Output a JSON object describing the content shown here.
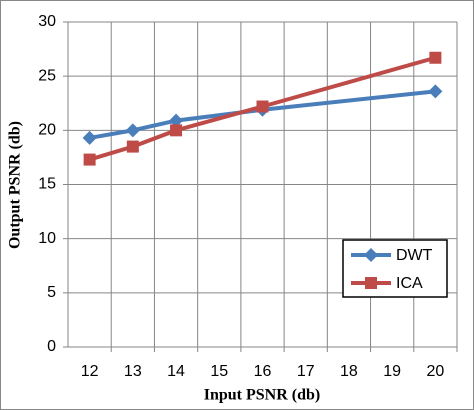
{
  "chart_data": {
    "type": "line",
    "x_label": "Input PSNR (db)",
    "y_label": "Output PSNR (db)",
    "x": [
      12,
      13,
      14,
      16,
      20
    ],
    "series": [
      {
        "name": "DWT",
        "color": "#4a7ebb",
        "marker": "diamond",
        "values": [
          19.3,
          20,
          20.9,
          21.9,
          23.6
        ]
      },
      {
        "name": "ICA",
        "color": "#be4b48",
        "marker": "square",
        "values": [
          17.3,
          18.5,
          20,
          22.2,
          26.7
        ]
      }
    ],
    "xlim": [
      11.5,
      20.5
    ],
    "xticks": [
      12,
      13,
      14,
      15,
      16,
      17,
      18,
      19,
      20
    ],
    "ylim": [
      0,
      30
    ],
    "yticks": [
      0,
      5,
      10,
      15,
      20,
      25,
      30
    ],
    "grid": true,
    "legend": "right"
  }
}
